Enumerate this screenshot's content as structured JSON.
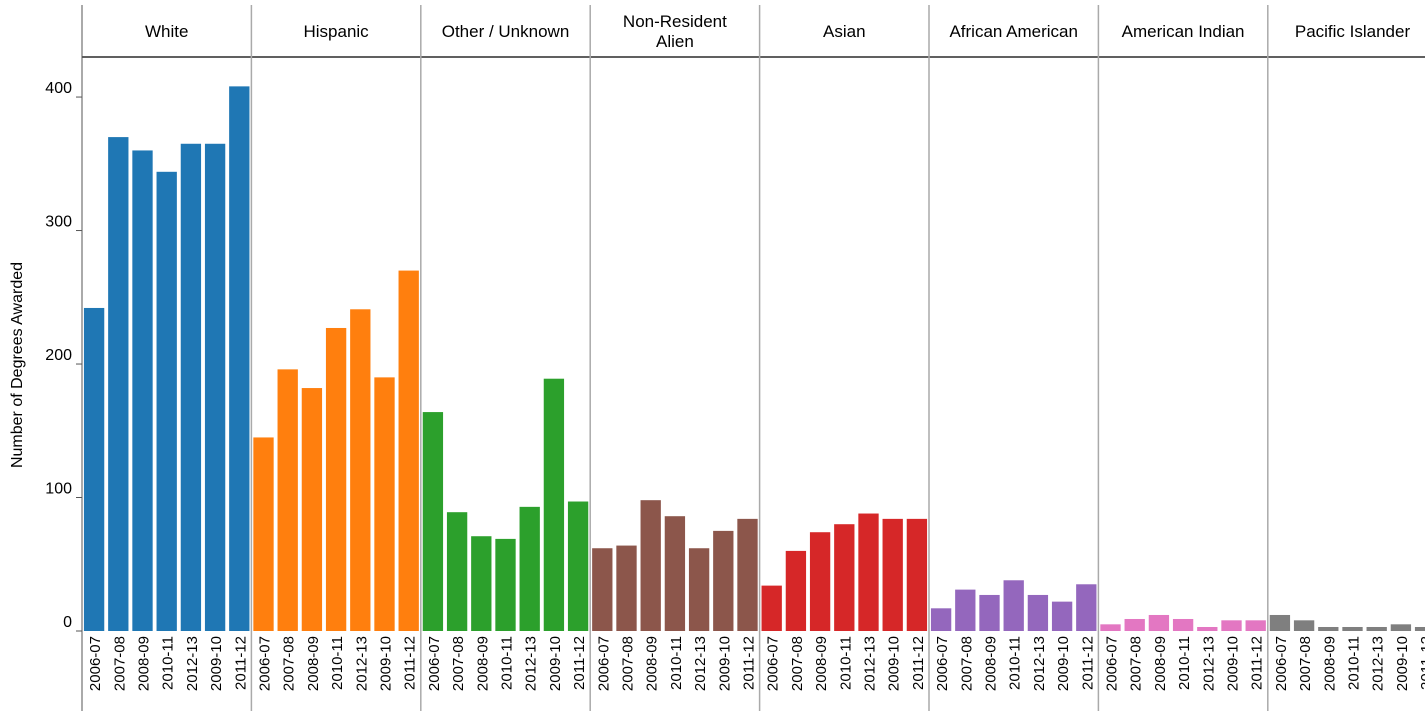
{
  "chart_data": {
    "type": "bar",
    "ylabel": "Number of Degrees Awarded",
    "ylim": [
      0,
      430
    ],
    "yticks": [
      "0",
      "100",
      "200",
      "300",
      "400"
    ],
    "categories": [
      "2006-07",
      "2007-08",
      "2008-09",
      "2010-11",
      "2012-13",
      "2009-10",
      "2011-12"
    ],
    "series": [
      {
        "name": "White",
        "name_lines": [
          "White"
        ],
        "color": "#1f77b4",
        "values": [
          242,
          370,
          360,
          344,
          365,
          365,
          408
        ]
      },
      {
        "name": "Hispanic",
        "name_lines": [
          "Hispanic"
        ],
        "color": "#ff7f0e",
        "values": [
          145,
          196,
          182,
          227,
          241,
          190,
          270
        ]
      },
      {
        "name": "Other / Unknown",
        "name_lines": [
          "Other / Unknown"
        ],
        "color": "#2ca02c",
        "values": [
          164,
          89,
          71,
          69,
          93,
          189,
          97
        ]
      },
      {
        "name": "Non-Resident Alien",
        "name_lines": [
          "Non-Resident",
          "Alien"
        ],
        "color": "#8c564b",
        "values": [
          62,
          64,
          98,
          86,
          62,
          75,
          84
        ]
      },
      {
        "name": "Asian",
        "name_lines": [
          "Asian"
        ],
        "color": "#d62728",
        "values": [
          34,
          60,
          74,
          80,
          88,
          84,
          84
        ]
      },
      {
        "name": "African American",
        "name_lines": [
          "African American"
        ],
        "color": "#9467bd",
        "values": [
          17,
          31,
          27,
          38,
          27,
          22,
          35
        ]
      },
      {
        "name": "American Indian",
        "name_lines": [
          "American Indian"
        ],
        "color": "#e377c2",
        "values": [
          5,
          9,
          12,
          9,
          3,
          8,
          8
        ]
      },
      {
        "name": "Pacific Islander",
        "name_lines": [
          "Pacific Islander"
        ],
        "color": "#7f7f7f",
        "values": [
          12,
          8,
          3,
          3,
          3,
          5,
          3
        ]
      }
    ]
  }
}
